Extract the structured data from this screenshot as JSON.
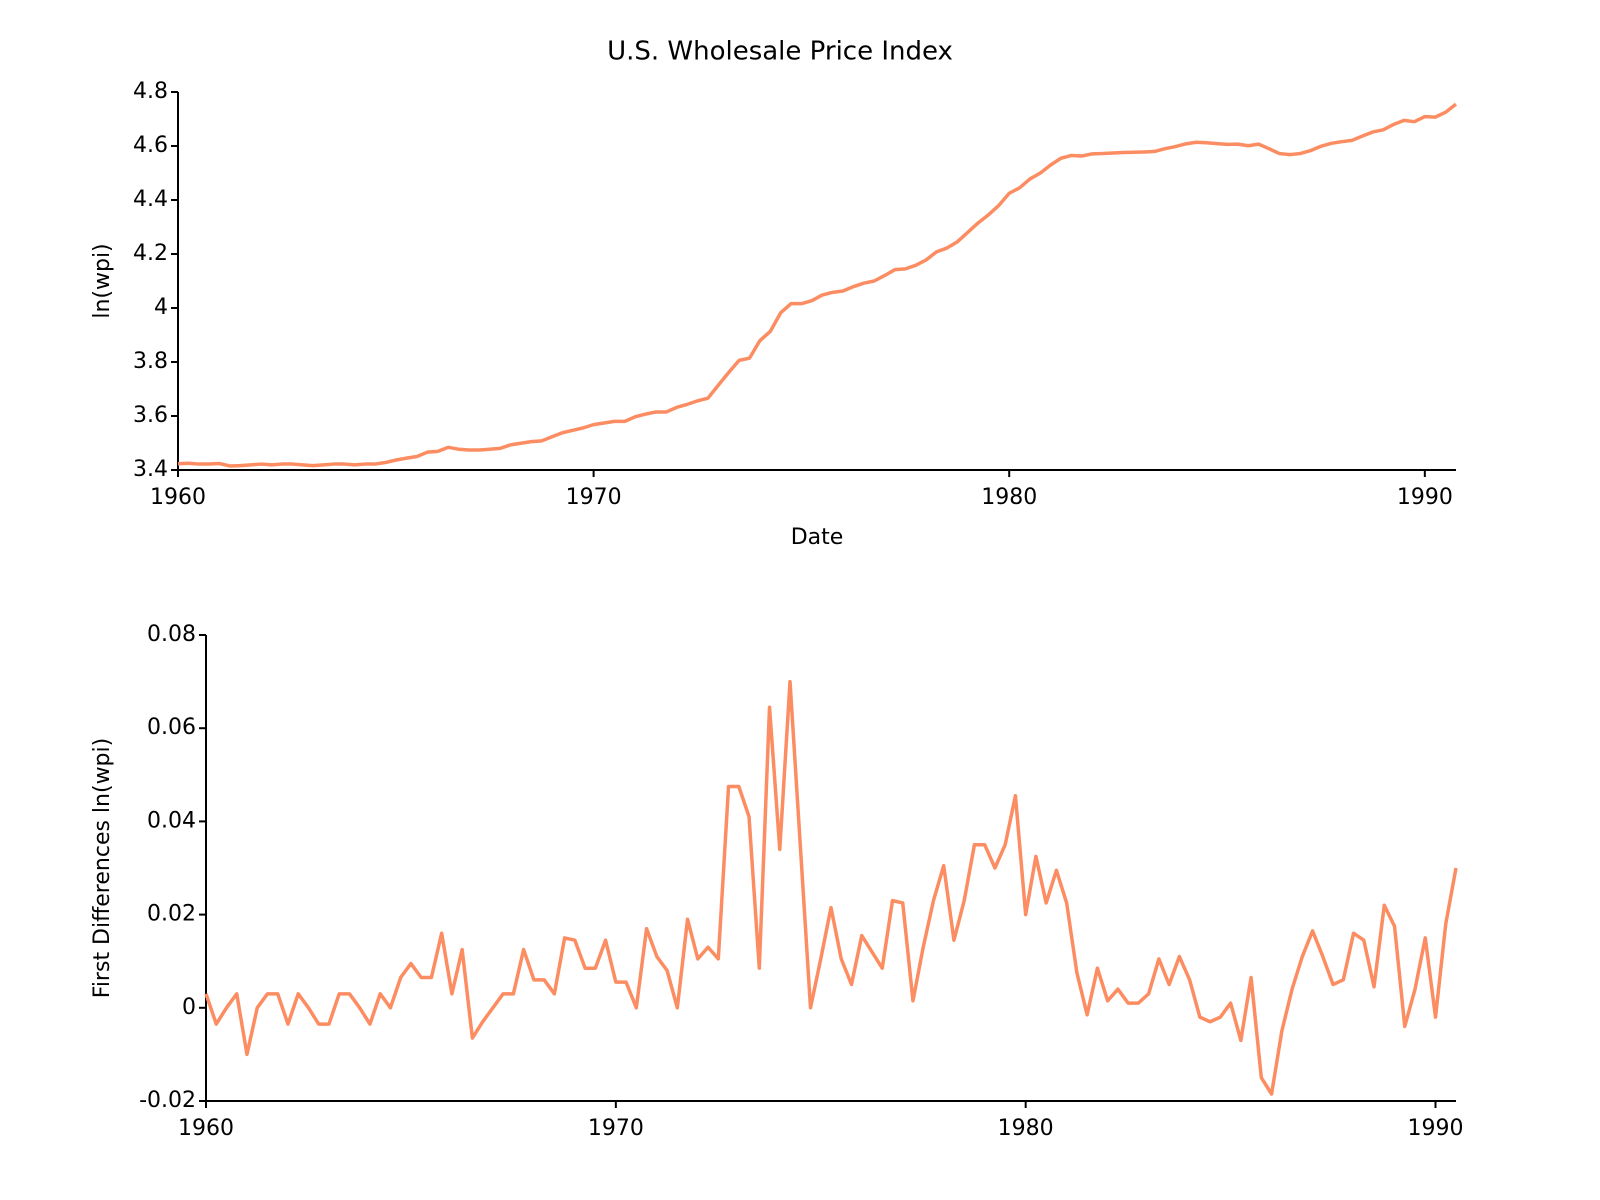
{
  "chart_data": [
    {
      "type": "line",
      "title": "U.S. Wholesale Price Index",
      "xlabel": "Date",
      "ylabel": "ln(wpi)",
      "color": "#fc8d62",
      "xlim": [
        1960,
        1990.75
      ],
      "xticks": [
        1960,
        1970,
        1980,
        1990
      ],
      "ylim": [
        3.4,
        4.8
      ],
      "yticks": [
        3.4,
        3.6,
        3.8,
        4,
        4.2,
        4.4,
        4.6,
        4.8
      ],
      "x": [
        1960,
        1960.25,
        1960.5,
        1960.75,
        1961,
        1961.25,
        1961.5,
        1961.75,
        1962,
        1962.25,
        1962.5,
        1962.75,
        1963,
        1963.25,
        1963.5,
        1963.75,
        1964,
        1964.25,
        1964.5,
        1964.75,
        1965,
        1965.25,
        1965.5,
        1965.75,
        1966,
        1966.25,
        1966.5,
        1966.75,
        1967,
        1967.25,
        1967.5,
        1967.75,
        1968,
        1968.25,
        1968.5,
        1968.75,
        1969,
        1969.25,
        1969.5,
        1969.75,
        1970,
        1970.25,
        1970.5,
        1970.75,
        1971,
        1971.25,
        1971.5,
        1971.75,
        1972,
        1972.25,
        1972.5,
        1972.75,
        1973,
        1973.25,
        1973.5,
        1973.75,
        1974,
        1974.25,
        1974.5,
        1974.75,
        1975,
        1975.25,
        1975.5,
        1975.75,
        1976,
        1976.25,
        1976.5,
        1976.75,
        1977,
        1977.25,
        1977.5,
        1977.75,
        1978,
        1978.25,
        1978.5,
        1978.75,
        1979,
        1979.25,
        1979.5,
        1979.75,
        1980,
        1980.25,
        1980.5,
        1980.75,
        1981,
        1981.25,
        1981.5,
        1981.75,
        1982,
        1982.25,
        1982.5,
        1982.75,
        1983,
        1983.25,
        1983.5,
        1983.75,
        1984,
        1984.25,
        1984.5,
        1984.75,
        1985,
        1985.25,
        1985.5,
        1985.75,
        1986,
        1986.25,
        1986.5,
        1986.75,
        1987,
        1987.25,
        1987.5,
        1987.75,
        1988,
        1988.25,
        1988.5,
        1988.75,
        1989,
        1989.25,
        1989.5,
        1989.75,
        1990,
        1990.25,
        1990.5,
        1990.75
      ],
      "values": [
        3.423,
        3.425,
        3.422,
        3.422,
        3.424,
        3.415,
        3.416,
        3.419,
        3.422,
        3.419,
        3.422,
        3.422,
        3.419,
        3.416,
        3.419,
        3.422,
        3.422,
        3.419,
        3.422,
        3.422,
        3.428,
        3.437,
        3.444,
        3.45,
        3.466,
        3.469,
        3.484,
        3.477,
        3.474,
        3.474,
        3.477,
        3.48,
        3.493,
        3.499,
        3.505,
        3.508,
        3.523,
        3.538,
        3.547,
        3.556,
        3.568,
        3.574,
        3.58,
        3.58,
        3.597,
        3.607,
        3.615,
        3.615,
        3.632,
        3.643,
        3.656,
        3.666,
        3.714,
        3.761,
        3.806,
        3.814,
        3.879,
        3.913,
        3.982,
        4.016,
        4.016,
        4.027,
        4.048,
        4.058,
        4.063,
        4.079,
        4.092,
        4.1,
        4.12,
        4.142,
        4.145,
        4.158,
        4.178,
        4.208,
        4.222,
        4.245,
        4.28,
        4.315,
        4.345,
        4.38,
        4.425,
        4.445,
        4.478,
        4.5,
        4.53,
        4.555,
        4.565,
        4.563,
        4.571,
        4.572,
        4.574,
        4.576,
        4.577,
        4.578,
        4.58,
        4.59,
        4.598,
        4.608,
        4.614,
        4.612,
        4.609,
        4.606,
        4.607,
        4.601,
        4.607,
        4.59,
        4.572,
        4.568,
        4.572,
        4.583,
        4.599,
        4.61,
        4.616,
        4.621,
        4.637,
        4.652,
        4.66,
        4.68,
        4.695,
        4.69,
        4.709,
        4.707,
        4.725,
        4.755
      ]
    },
    {
      "type": "line",
      "ylabel": "First Differences ln(wpi)",
      "color": "#fc8d62",
      "xlim": [
        1960,
        1990.5
      ],
      "xticks": [
        1960,
        1970,
        1980,
        1990
      ],
      "ylim": [
        -0.02,
        0.08
      ],
      "yticks": [
        -0.02,
        0,
        0.02,
        0.04,
        0.06,
        0.08
      ],
      "x": [
        1960,
        1960.25,
        1960.5,
        1960.75,
        1961,
        1961.25,
        1961.5,
        1961.75,
        1962,
        1962.25,
        1962.5,
        1962.75,
        1963,
        1963.25,
        1963.5,
        1963.75,
        1964,
        1964.25,
        1964.5,
        1964.75,
        1965,
        1965.25,
        1965.5,
        1965.75,
        1966,
        1966.25,
        1966.5,
        1966.75,
        1967,
        1967.25,
        1967.5,
        1967.75,
        1968,
        1968.25,
        1968.5,
        1968.75,
        1969,
        1969.25,
        1969.5,
        1969.75,
        1970,
        1970.25,
        1970.5,
        1970.75,
        1971,
        1971.25,
        1971.5,
        1971.75,
        1972,
        1972.25,
        1972.5,
        1972.75,
        1973,
        1973.25,
        1973.5,
        1973.75,
        1974,
        1974.25,
        1974.5,
        1974.75,
        1975,
        1975.25,
        1975.5,
        1975.75,
        1976,
        1976.25,
        1976.5,
        1976.75,
        1977,
        1977.25,
        1977.5,
        1977.75,
        1978,
        1978.25,
        1978.5,
        1978.75,
        1979,
        1979.25,
        1979.5,
        1979.75,
        1980,
        1980.25,
        1980.5,
        1980.75,
        1981,
        1981.25,
        1981.5,
        1981.75,
        1982,
        1982.25,
        1982.5,
        1982.75,
        1983,
        1983.25,
        1983.5,
        1983.75,
        1984,
        1984.25,
        1984.5,
        1984.75,
        1985,
        1985.25,
        1985.5,
        1985.75,
        1986,
        1986.25,
        1986.5,
        1986.75,
        1987,
        1987.25,
        1987.5,
        1987.75,
        1988,
        1988.25,
        1988.5,
        1988.75,
        1989,
        1989.25,
        1989.5,
        1989.75,
        1990,
        1990.25,
        1990.5
      ],
      "values": [
        0.003,
        -0.0035,
        0,
        0.003,
        -0.01,
        0,
        0.003,
        0.003,
        -0.0035,
        0.003,
        0,
        -0.0035,
        -0.0035,
        0.003,
        0.003,
        0,
        -0.0035,
        0.003,
        0,
        0.0065,
        0.0095,
        0.0065,
        0.0065,
        0.016,
        0.003,
        0.0125,
        -0.0065,
        -0.003,
        0,
        0.003,
        0.003,
        0.0125,
        0.006,
        0.006,
        0.003,
        0.015,
        0.0145,
        0.0085,
        0.0085,
        0.0145,
        0.0055,
        0.0055,
        0,
        0.017,
        0.011,
        0.008,
        0,
        0.019,
        0.0105,
        0.013,
        0.0105,
        0.0475,
        0.0475,
        0.041,
        0.0085,
        0.0645,
        0.034,
        0.07,
        0.035,
        0,
        0.0105,
        0.0215,
        0.0105,
        0.005,
        0.0155,
        0.012,
        0.0085,
        0.023,
        0.0225,
        0.0015,
        0.013,
        0.023,
        0.0305,
        0.0145,
        0.023,
        0.035,
        0.035,
        0.03,
        0.035,
        0.0455,
        0.02,
        0.0325,
        0.0225,
        0.0295,
        0.0225,
        0.0075,
        -0.0015,
        0.0085,
        0.0015,
        0.004,
        0.001,
        0.001,
        0.003,
        0.0105,
        0.005,
        0.011,
        0.006,
        -0.002,
        -0.003,
        -0.002,
        0.001,
        -0.007,
        0.0065,
        -0.015,
        -0.0185,
        -0.005,
        0.004,
        0.011,
        0.0165,
        0.011,
        0.005,
        0.006,
        0.016,
        0.0145,
        0.0045,
        0.022,
        0.0175,
        -0.004,
        0.004,
        0.015,
        -0.002,
        0.018,
        0.03
      ]
    }
  ]
}
